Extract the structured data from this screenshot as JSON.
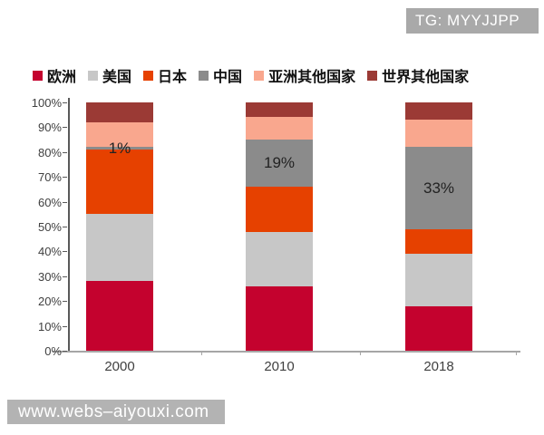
{
  "overlay_badge": {
    "text": "TG: MYYJJPP"
  },
  "watermark": {
    "text": "www.webs–aiyouxi.com"
  },
  "colors": {
    "europe": "#c4022e",
    "usa": "#c7c7c7",
    "japan": "#e64100",
    "china": "#8b8b8b",
    "other_asia": "#f9a78e",
    "rest_of_world": "#9b3a35",
    "badge_bg": "#a9a9a9",
    "watermark_bg": "#b3b3b3",
    "axis_dark": "#595959",
    "axis_light": "#a6a6a6",
    "tick_text": "#404040"
  },
  "chart_data": {
    "type": "bar",
    "stacked": true,
    "percent": true,
    "title": "",
    "xlabel": "",
    "ylabel": "",
    "ylim": [
      0,
      100
    ],
    "grid": false,
    "legend_position": "top",
    "categories": [
      "2000",
      "2010",
      "2018"
    ],
    "series": [
      {
        "name": "欧洲",
        "color": "#c4022e",
        "values": [
          28,
          26,
          18
        ]
      },
      {
        "name": "美国",
        "color": "#c7c7c7",
        "values": [
          27,
          22,
          21
        ]
      },
      {
        "name": "日本",
        "color": "#e64100",
        "values": [
          26,
          18,
          10
        ]
      },
      {
        "name": "中国",
        "color": "#8b8b8b",
        "values": [
          1,
          19,
          33
        ]
      },
      {
        "name": "亚洲其他国家",
        "color": "#f9a78e",
        "values": [
          10,
          9,
          11
        ]
      },
      {
        "name": "世界其他国家",
        "color": "#9b3a35",
        "values": [
          8,
          6,
          7
        ]
      }
    ],
    "annotations": [
      {
        "category": "2000",
        "series": "中国",
        "text": "1%"
      },
      {
        "category": "2010",
        "series": "中国",
        "text": "19%"
      },
      {
        "category": "2018",
        "series": "中国",
        "text": "33%"
      }
    ],
    "y_ticks": [
      "100%",
      "90%",
      "80%",
      "70%",
      "60%",
      "50%",
      "40%",
      "30%",
      "20%",
      "10%",
      "0%"
    ]
  }
}
